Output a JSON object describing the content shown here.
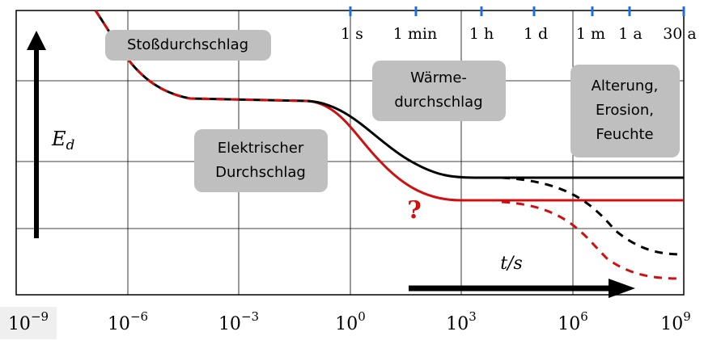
{
  "axis": {
    "y_label": {
      "main": "E",
      "sub": "d"
    },
    "x_label": "t/s",
    "x_ticks": [
      {
        "base": "10",
        "exp": "−9"
      },
      {
        "base": "10",
        "exp": "−6"
      },
      {
        "base": "10",
        "exp": "−3"
      },
      {
        "base": "10",
        "exp": "0"
      },
      {
        "base": "10",
        "exp": "3"
      },
      {
        "base": "10",
        "exp": "6"
      },
      {
        "base": "10",
        "exp": "9"
      }
    ]
  },
  "time_marks": [
    "1 s",
    "1 min",
    "1 h",
    "1 d",
    "1 m",
    "1 a",
    "30 a"
  ],
  "boxes": [
    {
      "lines": [
        "Stoßdurchschlag"
      ]
    },
    {
      "lines": [
        "Elektrischer",
        "Durchschlag"
      ]
    },
    {
      "lines": [
        "Wärme-",
        "durchschlag"
      ]
    },
    {
      "lines": [
        "Alterung,",
        "Erosion,",
        "Feuchte"
      ]
    }
  ],
  "question": "?"
}
